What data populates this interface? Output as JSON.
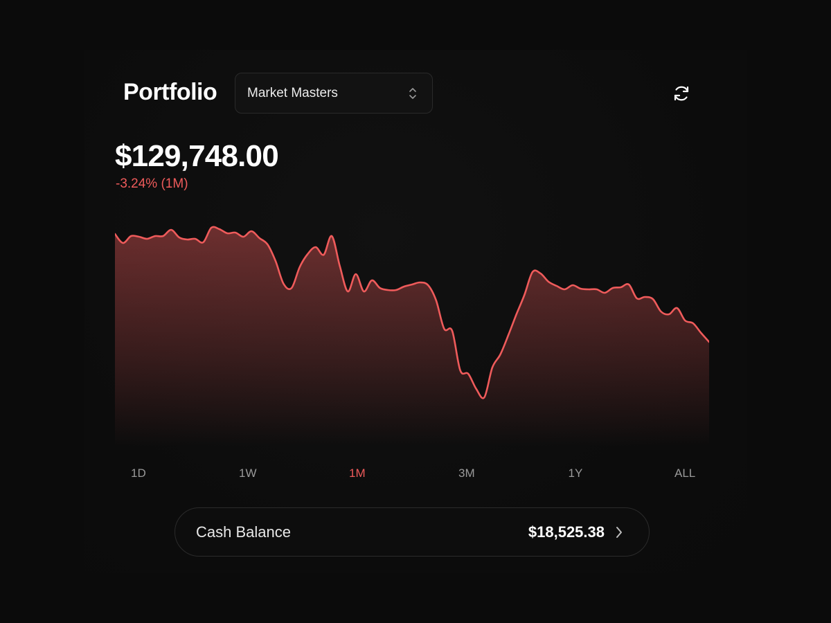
{
  "header": {
    "title": "Portfolio",
    "account_selector": {
      "selected": "Market Masters",
      "icon": "chevron-up-down-icon"
    },
    "refresh_icon": "refresh-icon"
  },
  "summary": {
    "total_value": "$129,748.00",
    "change": "-3.24% (1M)"
  },
  "colors": {
    "accent_negative": "#ef5b5b",
    "background": "#0b0b0b",
    "text_primary": "#ffffff",
    "text_muted": "#9a9a9a"
  },
  "chart_data": {
    "type": "area",
    "title": "",
    "xlabel": "",
    "ylabel": "",
    "grid": false,
    "legend": "none",
    "ylim": [
      0,
      325
    ],
    "values": [
      307,
      294,
      304,
      303,
      300,
      304,
      304,
      313,
      302,
      299,
      300,
      295,
      316,
      314,
      308,
      309,
      303,
      311,
      301,
      292,
      268,
      235,
      229,
      259,
      278,
      288,
      277,
      304,
      261,
      224,
      249,
      224,
      240,
      229,
      226,
      226,
      231,
      234,
      237,
      233,
      211,
      170,
      167,
      110,
      105,
      83,
      71,
      114,
      133,
      161,
      191,
      219,
      252,
      250,
      238,
      232,
      227,
      233,
      228,
      227,
      227,
      222,
      229,
      230,
      234,
      214,
      216,
      213,
      195,
      191,
      200,
      182,
      178,
      164,
      151
    ]
  },
  "time_ranges": {
    "active": "1M",
    "items": [
      "1D",
      "1W",
      "1M",
      "3M",
      "1Y",
      "ALL"
    ]
  },
  "cash": {
    "label": "Cash Balance",
    "value": "$18,525.38",
    "icon": "chevron-right-icon"
  }
}
